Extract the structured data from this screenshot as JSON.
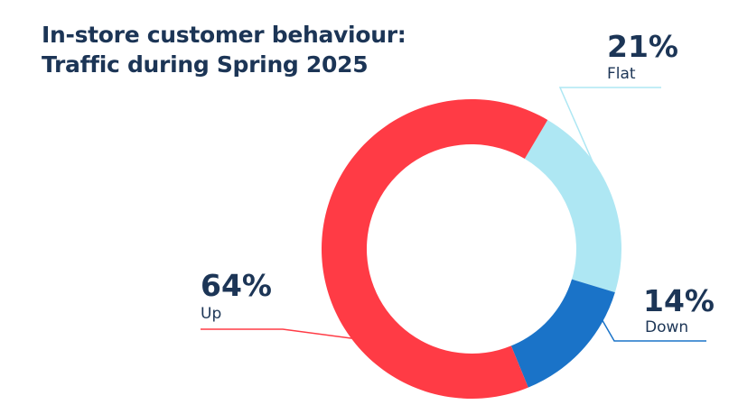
{
  "title_lines": [
    "In-store customer behaviour:",
    "Traffic during Spring 2025"
  ],
  "chart_data": {
    "type": "pie",
    "variant": "donut",
    "categories": [
      "Flat",
      "Down",
      "Up"
    ],
    "values": [
      21,
      14,
      64
    ],
    "value_labels": [
      "21%",
      "14%",
      "64%"
    ],
    "colors": [
      "#aee7f3",
      "#1a73c8",
      "#ff3b45"
    ],
    "title": "In-store customer behaviour: Traffic during Spring 2025",
    "legend": "none"
  },
  "colors": {
    "text": "#1c3556",
    "background": "#ffffff"
  }
}
